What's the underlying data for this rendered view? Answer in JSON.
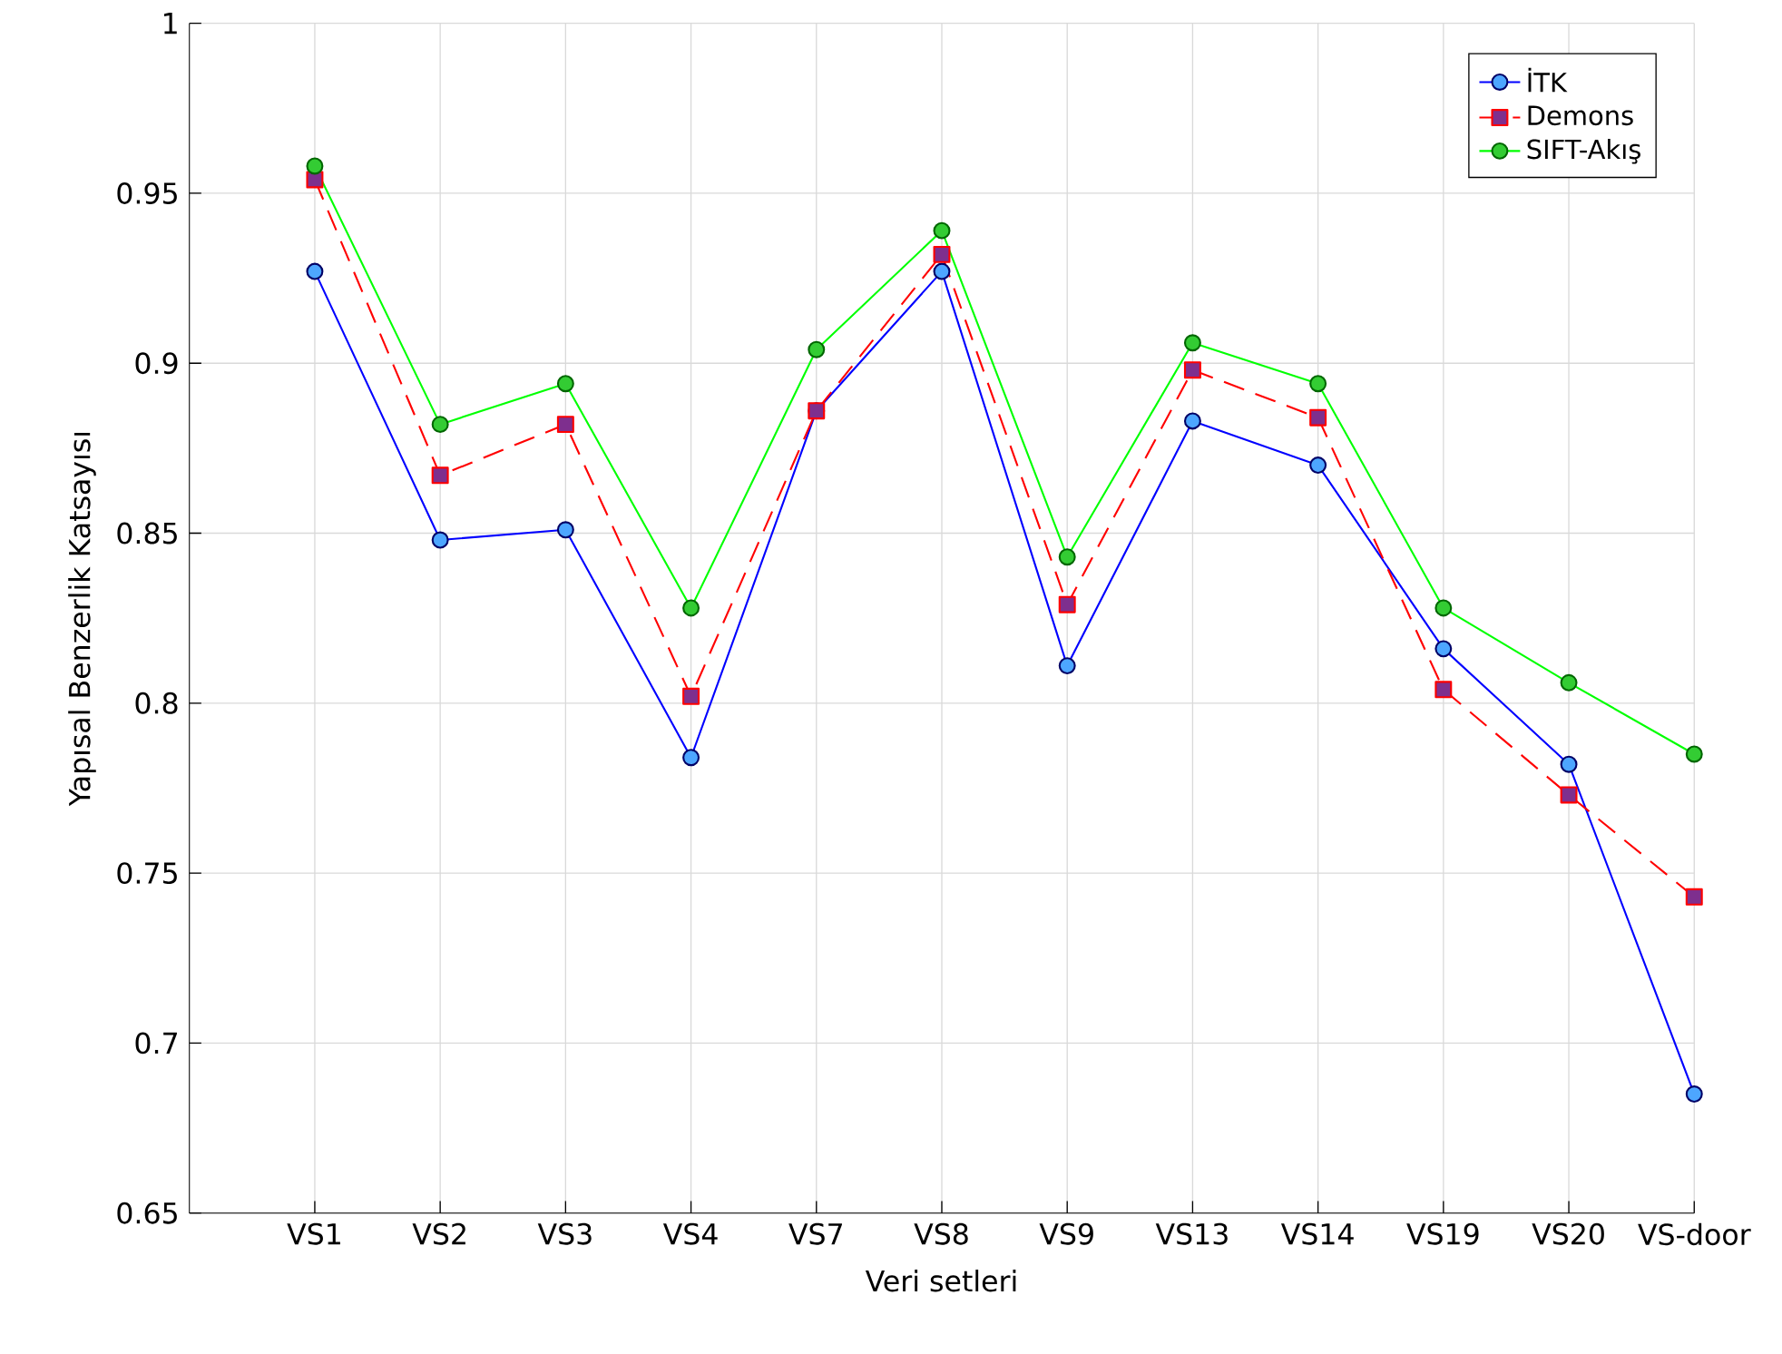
{
  "chart_data": {
    "type": "line",
    "xlabel": "Veri setleri",
    "ylabel": "Yapısal Benzerlik Katsayısı",
    "categories": [
      "VS1",
      "VS2",
      "VS3",
      "VS4",
      "VS7",
      "VS8",
      "VS9",
      "VS13",
      "VS14",
      "VS19",
      "VS20",
      "VS-door"
    ],
    "ylim": [
      0.65,
      1
    ],
    "yticks": [
      0.65,
      0.7,
      0.75,
      0.8,
      0.85,
      0.9,
      0.95,
      1
    ],
    "grid": true,
    "legend": "top right",
    "series": [
      {
        "name": "İTK",
        "color": "#0000ff",
        "marker": "circle",
        "line_style": "solid",
        "values": [
          0.927,
          0.848,
          0.851,
          0.784,
          0.886,
          0.927,
          0.811,
          0.883,
          0.87,
          0.816,
          0.782,
          0.685
        ]
      },
      {
        "name": "Demons",
        "color": "#ff0000",
        "marker": "square",
        "line_style": "dashed",
        "values": [
          0.954,
          0.867,
          0.882,
          0.802,
          0.886,
          0.932,
          0.829,
          0.898,
          0.884,
          0.804,
          0.773,
          0.743
        ]
      },
      {
        "name": "SIFT-Akış",
        "color": "#00ff00",
        "marker": "circle",
        "line_style": "solid",
        "values": [
          0.958,
          0.882,
          0.894,
          0.828,
          0.904,
          0.939,
          0.843,
          0.906,
          0.894,
          0.828,
          0.806,
          0.785
        ]
      }
    ]
  }
}
